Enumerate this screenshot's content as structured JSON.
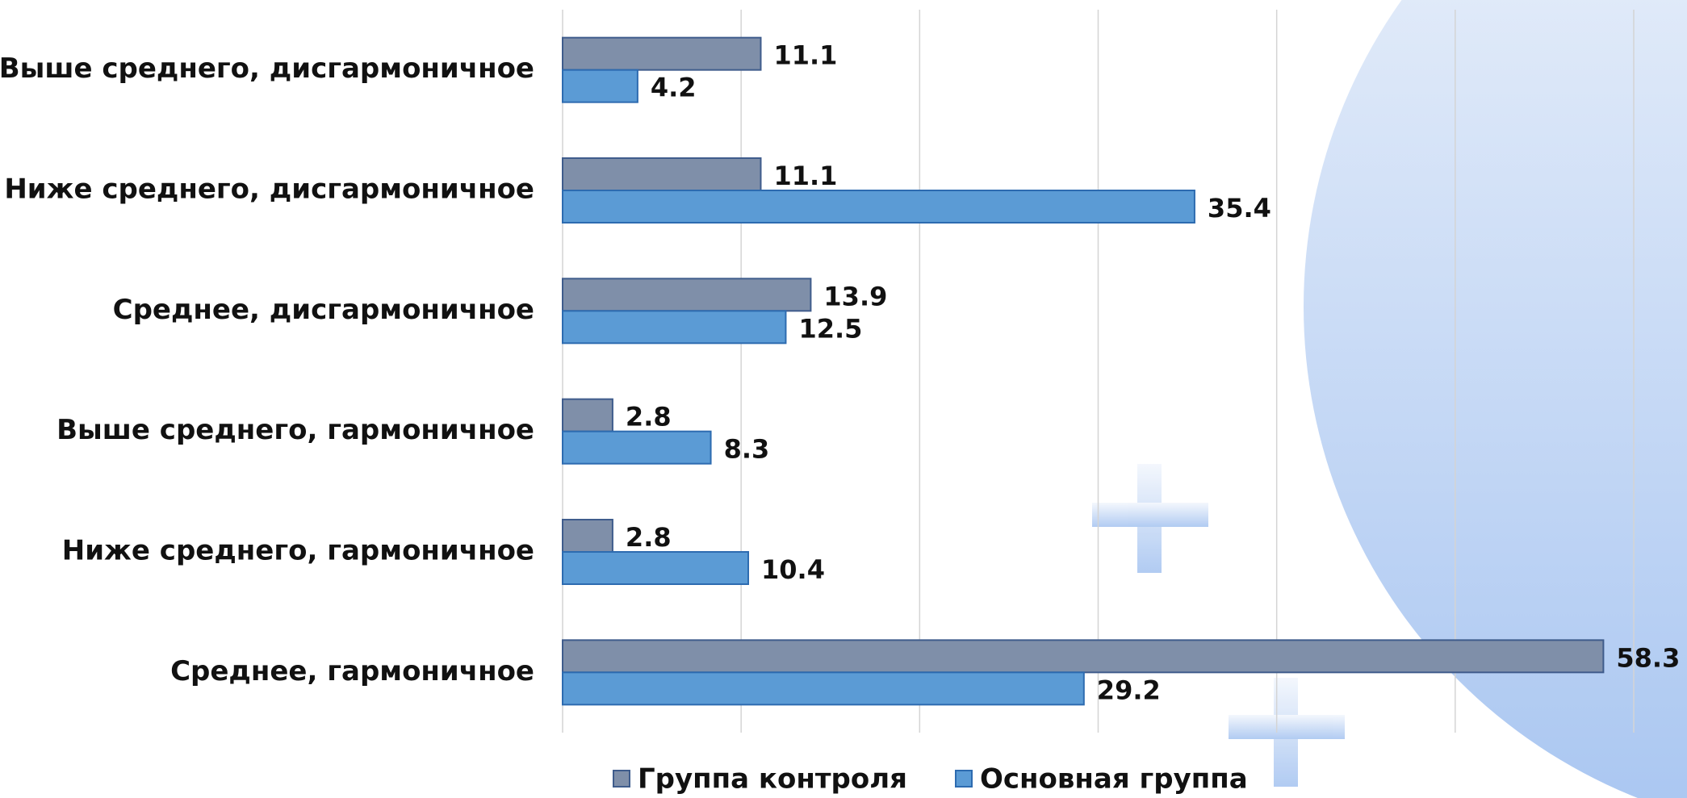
{
  "chart_data": {
    "type": "bar",
    "orientation": "horizontal",
    "categories": [
      "Выше среднего, дисгармоничное",
      "Ниже среднего, дисгармоничное",
      "Среднее, дисгармоничное",
      "Выше среднего, гармоничное",
      "Ниже среднего, гармоничное",
      "Среднее, гармоничное"
    ],
    "series": [
      {
        "name": "Группа контроля",
        "color": "#7f8fa9",
        "values": [
          11.1,
          11.1,
          13.9,
          2.8,
          2.8,
          58.3
        ]
      },
      {
        "name": "Основная группа",
        "color": "#5b9bd5",
        "values": [
          4.2,
          35.4,
          12.5,
          8.3,
          10.4,
          29.2
        ]
      }
    ],
    "xlim": [
      0,
      60
    ],
    "xticks": [
      0,
      10,
      20,
      30,
      40,
      50,
      60
    ],
    "grid": true,
    "legend": "bottom"
  }
}
